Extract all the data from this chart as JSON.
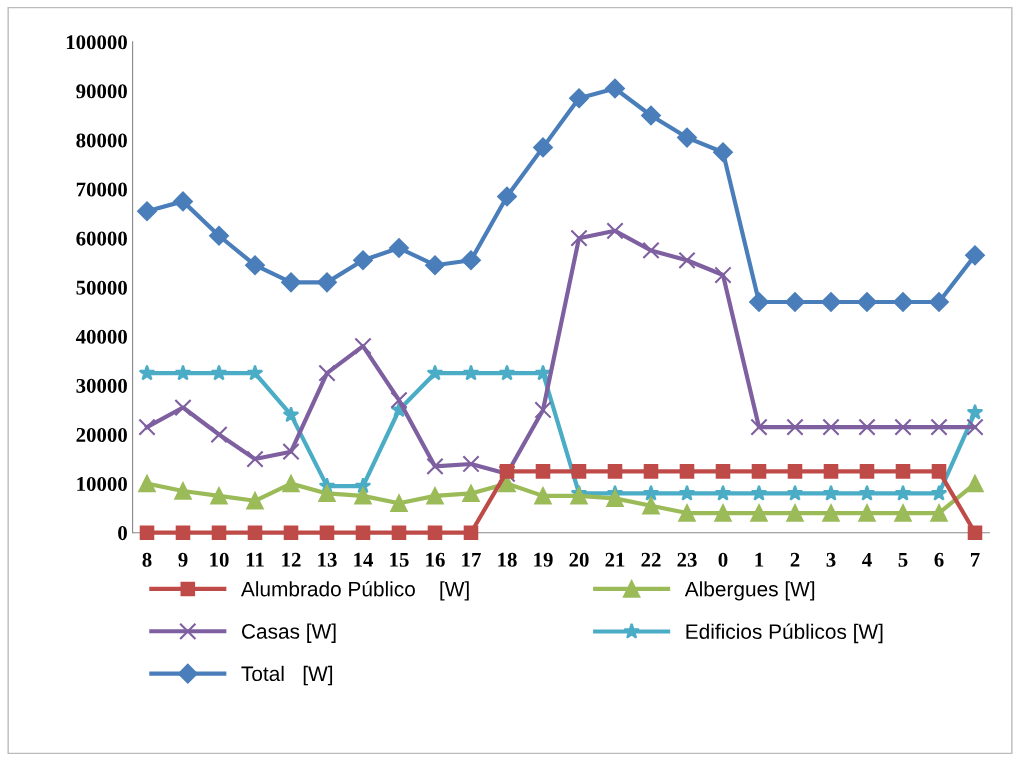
{
  "chart_data": {
    "type": "line",
    "categories": [
      "8",
      "9",
      "10",
      "11",
      "12",
      "13",
      "14",
      "15",
      "16",
      "17",
      "18",
      "19",
      "20",
      "21",
      "22",
      "23",
      "0",
      "1",
      "2",
      "3",
      "4",
      "5",
      "6",
      "7"
    ],
    "ylim": [
      0,
      100000
    ],
    "yticks": [
      0,
      10000,
      20000,
      30000,
      40000,
      50000,
      60000,
      70000,
      80000,
      90000,
      100000
    ],
    "grid": false,
    "legend": "bottom",
    "series": [
      {
        "name": "Alumbrado Público    [W]",
        "color": "#be4b48",
        "marker": "square",
        "values": [
          0,
          0,
          0,
          0,
          0,
          0,
          0,
          0,
          0,
          0,
          12500,
          12500,
          12500,
          12500,
          12500,
          12500,
          12500,
          12500,
          12500,
          12500,
          12500,
          12500,
          12500,
          0
        ]
      },
      {
        "name": "Albergues [W]",
        "color": "#9bbb59",
        "marker": "triangle",
        "values": [
          10000,
          8500,
          7500,
          6500,
          10000,
          8000,
          7500,
          6000,
          7500,
          8000,
          10000,
          7500,
          7500,
          7000,
          5500,
          4000,
          4000,
          4000,
          4000,
          4000,
          4000,
          4000,
          4000,
          10000
        ]
      },
      {
        "name": "Casas [W]",
        "color": "#7e5fa0",
        "marker": "cross",
        "values": [
          21500,
          25500,
          20000,
          15000,
          16500,
          32500,
          38000,
          27000,
          13500,
          14000,
          12000,
          25000,
          60000,
          61500,
          57500,
          55500,
          52500,
          21500,
          21500,
          21500,
          21500,
          21500,
          21500,
          21500
        ]
      },
      {
        "name": "Edificios Públicos [W]",
        "color": "#4bacc6",
        "marker": "star",
        "values": [
          32500,
          32500,
          32500,
          32500,
          24000,
          9500,
          9500,
          25000,
          32500,
          32500,
          32500,
          32500,
          8000,
          8000,
          8000,
          8000,
          8000,
          8000,
          8000,
          8000,
          8000,
          8000,
          8000,
          24500
        ]
      },
      {
        "name": "Total   [W]",
        "color": "#4a7ebb",
        "marker": "diamond",
        "values": [
          65500,
          67500,
          60500,
          54500,
          51000,
          51000,
          55500,
          58000,
          54500,
          55500,
          68500,
          78500,
          88500,
          90500,
          85000,
          80500,
          77500,
          47000,
          47000,
          47000,
          47000,
          47000,
          47000,
          56500
        ]
      }
    ]
  }
}
